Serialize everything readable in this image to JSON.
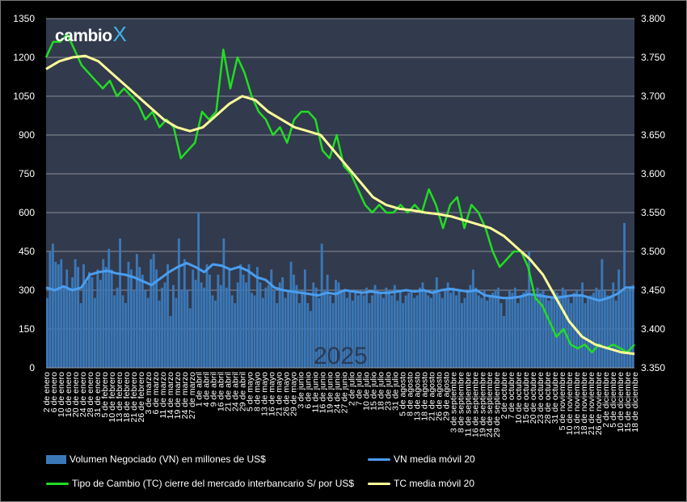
{
  "logo": {
    "text": "cambio",
    "mark": "X"
  },
  "watermark": "2025",
  "chart_data": {
    "type": "bar",
    "title": "",
    "y_left": {
      "ticks": [
        "0",
        "150",
        "300",
        "450",
        "600",
        "750",
        "900",
        "1050",
        "1200",
        "1350"
      ],
      "range": [
        0,
        1350
      ]
    },
    "y_right": {
      "ticks": [
        "3.350",
        "3.400",
        "3.450",
        "3.500",
        "3.550",
        "3.600",
        "3.650",
        "3.700",
        "3.750",
        "3.800"
      ],
      "range": [
        3.35,
        3.8
      ]
    },
    "x_labels": [
      "2 de enero",
      "6 de enero",
      "10 de enero",
      "16 de enero",
      "20 de enero",
      "24 de enero",
      "28 de enero",
      "31 de enero",
      "5 de febrero",
      "10 de febrero",
      "13 de febrero",
      "18 de febrero",
      "21 de febrero",
      "26 de febrero",
      "3 de marzo",
      "6 de marzo",
      "11 de marzo",
      "14 de marzo",
      "19 de marzo",
      "24 de marzo",
      "27 de marzo",
      "1 de abril",
      "4 de abril",
      "9 de abril",
      "16 de abril",
      "21 de abril",
      "24 de abril",
      "29 de abril",
      "5 de mayo",
      "8 de mayo",
      "13 de mayo",
      "16 de mayo",
      "21 de mayo",
      "26 de mayo",
      "29 de mayo",
      "3 de junio",
      "6 de junio",
      "11 de junio",
      "16 de junio",
      "19 de junio",
      "24 de junio",
      "27 de junio",
      "2 de julio",
      "7 de julio",
      "10 de julio",
      "15 de julio",
      "18 de julio",
      "23 de julio",
      "31 de julio",
      "5 de agosto",
      "8 de agosto",
      "13 de agosto",
      "18 de agosto",
      "21 de agosto",
      "26 de agosto",
      "29 de agosto",
      "3 de septiembre",
      "8 de septiembre",
      "11 de septiembre",
      "16 de septiembre",
      "19 de septiembre",
      "24 de septiembre",
      "29 de septiembre",
      "2 de octubre",
      "7 de octubre",
      "10 de octubre",
      "15 de octubre",
      "20 de octubre",
      "23 de octubre",
      "28 de octubre",
      "31 de octubre",
      "5 de noviembre",
      "10 de noviembre",
      "13 de noviembre",
      "18 de noviembre",
      "21 de noviembre",
      "26 de noviembre",
      "2 de diciembre",
      "5 de diciembre",
      "10 de diciembre",
      "15 de diciembre",
      "18 de diciembre"
    ],
    "series": [
      {
        "name": "Volumen Negociado (VN) en millones de US$",
        "kind": "bar",
        "axis": "left",
        "color": "#3a78b8",
        "values": [
          270,
          450,
          480,
          410,
          400,
          420,
          310,
          380,
          300,
          350,
          420,
          390,
          250,
          400,
          330,
          370,
          350,
          270,
          380,
          340,
          420,
          390,
          460,
          380,
          280,
          310,
          500,
          280,
          250,
          410,
          380,
          300,
          440,
          390,
          360,
          300,
          270,
          420,
          440,
          380,
          260,
          310,
          330,
          400,
          200,
          320,
          270,
          500,
          300,
          420,
          300,
          230,
          380,
          340,
          600,
          330,
          310,
          400,
          360,
          280,
          260,
          360,
          320,
          500,
          310,
          380,
          280,
          250,
          330,
          400,
          360,
          330,
          400,
          290,
          280,
          390,
          330,
          270,
          310,
          320,
          380,
          300,
          250,
          330,
          350,
          270,
          300,
          410,
          360,
          320,
          250,
          300,
          380,
          250,
          220,
          330,
          310,
          270,
          480,
          300,
          360,
          280,
          250,
          340,
          330,
          290,
          300,
          270,
          300,
          260,
          300,
          280,
          300,
          280,
          310,
          250,
          280,
          320,
          300,
          290,
          270,
          310,
          300,
          280,
          320,
          260,
          300,
          250,
          280,
          290,
          300,
          270,
          280,
          310,
          330,
          300,
          280,
          270,
          300,
          350,
          290,
          270,
          300,
          330,
          290,
          310,
          280,
          300,
          250,
          270,
          300,
          320,
          380,
          310,
          280,
          270,
          300,
          260,
          280,
          290,
          300,
          310,
          250,
          200,
          270,
          300,
          290,
          310,
          250,
          280,
          290,
          300,
          450,
          280,
          270,
          310,
          290,
          300,
          280,
          260,
          270,
          300,
          290,
          280,
          310,
          300,
          270,
          250,
          290,
          300,
          280,
          330,
          250,
          270,
          280,
          290,
          310,
          300,
          420,
          300,
          280,
          270,
          330,
          260,
          380,
          300,
          560,
          300,
          310,
          320
        ]
      },
      {
        "name": "VN media móvil 20",
        "kind": "line",
        "axis": "left",
        "color": "#4a9ef0",
        "values": [
          310,
          300,
          315,
          300,
          310,
          360,
          370,
          375,
          365,
          360,
          350,
          335,
          320,
          345,
          370,
          390,
          405,
          390,
          370,
          400,
          395,
          380,
          390,
          375,
          350,
          340,
          310,
          300,
          295,
          290,
          285,
          280,
          290,
          285,
          300,
          295,
          290,
          295,
          290,
          290,
          295,
          300,
          295,
          300,
          290,
          300,
          305,
          300,
          295,
          300,
          280,
          275,
          270,
          270,
          275,
          285,
          280,
          275,
          270,
          275,
          280,
          280,
          270,
          260,
          270,
          285,
          310,
          310
        ]
      },
      {
        "name": "Tipo de Cambio (TC) cierre del mercado interbancario S/ por US$",
        "kind": "line",
        "axis": "right",
        "color": "#22dd22",
        "values": [
          3.75,
          3.77,
          3.77,
          3.78,
          3.76,
          3.74,
          3.73,
          3.72,
          3.71,
          3.72,
          3.7,
          3.71,
          3.7,
          3.69,
          3.67,
          3.68,
          3.66,
          3.67,
          3.66,
          3.62,
          3.63,
          3.64,
          3.68,
          3.67,
          3.68,
          3.76,
          3.71,
          3.75,
          3.73,
          3.7,
          3.68,
          3.67,
          3.65,
          3.66,
          3.64,
          3.67,
          3.68,
          3.68,
          3.67,
          3.63,
          3.62,
          3.65,
          3.61,
          3.6,
          3.58,
          3.56,
          3.55,
          3.56,
          3.55,
          3.55,
          3.56,
          3.55,
          3.56,
          3.55,
          3.58,
          3.56,
          3.53,
          3.56,
          3.57,
          3.53,
          3.56,
          3.55,
          3.53,
          3.5,
          3.48,
          3.49,
          3.5,
          3.5,
          3.48,
          3.44,
          3.43,
          3.41,
          3.39,
          3.4,
          3.38,
          3.375,
          3.38,
          3.37,
          3.38,
          3.375,
          3.38,
          3.375,
          3.37,
          3.38
        ]
      },
      {
        "name": "TC media móvil 20",
        "kind": "line",
        "axis": "right",
        "color": "#ffff99",
        "values": [
          3.735,
          3.745,
          3.75,
          3.752,
          3.745,
          3.73,
          3.715,
          3.7,
          3.685,
          3.67,
          3.66,
          3.655,
          3.66,
          3.675,
          3.69,
          3.7,
          3.695,
          3.68,
          3.67,
          3.66,
          3.655,
          3.65,
          3.63,
          3.61,
          3.59,
          3.57,
          3.56,
          3.555,
          3.553,
          3.55,
          3.548,
          3.545,
          3.54,
          3.535,
          3.53,
          3.52,
          3.505,
          3.49,
          3.47,
          3.44,
          3.41,
          3.39,
          3.38,
          3.375,
          3.37,
          3.368
        ]
      }
    ],
    "legend": "bottom"
  }
}
